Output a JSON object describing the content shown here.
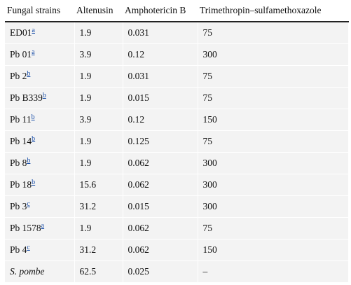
{
  "table": {
    "headers": [
      "Fungal strains",
      "Altenusin",
      "Amphotericin B",
      "Trimethropin–sulfamethoxazole"
    ],
    "rows": [
      {
        "strain": "ED01",
        "note": "a",
        "italic": false,
        "altenusin": "1.9",
        "amphotericin": "0.031",
        "tmp_smx": "75"
      },
      {
        "strain": "Pb 01",
        "note": "a",
        "italic": false,
        "altenusin": "3.9",
        "amphotericin": "0.12",
        "tmp_smx": "300"
      },
      {
        "strain": "Pb 2",
        "note": "b",
        "italic": false,
        "altenusin": "1.9",
        "amphotericin": "0.031",
        "tmp_smx": "75"
      },
      {
        "strain": "Pb B339",
        "note": "b",
        "italic": false,
        "altenusin": "1.9",
        "amphotericin": "0.015",
        "tmp_smx": "75"
      },
      {
        "strain": "Pb 11",
        "note": "b",
        "italic": false,
        "altenusin": "3.9",
        "amphotericin": "0.12",
        "tmp_smx": "150"
      },
      {
        "strain": "Pb 14",
        "note": "b",
        "italic": false,
        "altenusin": "1.9",
        "amphotericin": "0.125",
        "tmp_smx": "75"
      },
      {
        "strain": "Pb 8",
        "note": "b",
        "italic": false,
        "altenusin": "1.9",
        "amphotericin": "0.062",
        "tmp_smx": "300"
      },
      {
        "strain": "Pb 18",
        "note": "b",
        "italic": false,
        "altenusin": "15.6",
        "amphotericin": "0.062",
        "tmp_smx": "300"
      },
      {
        "strain": "Pb 3",
        "note": "c",
        "italic": false,
        "altenusin": "31.2",
        "amphotericin": "0.015",
        "tmp_smx": "300"
      },
      {
        "strain": "Pb 1578",
        "note": "a",
        "italic": false,
        "altenusin": "1.9",
        "amphotericin": "0.062",
        "tmp_smx": "75"
      },
      {
        "strain": "Pb 4",
        "note": "c",
        "italic": false,
        "altenusin": "31.2",
        "amphotericin": "0.062",
        "tmp_smx": "150"
      },
      {
        "strain": "S. pombe",
        "note": "",
        "italic": true,
        "altenusin": "62.5",
        "amphotericin": "0.025",
        "tmp_smx": "–"
      }
    ]
  },
  "colors": {
    "cell_background": "#f3f3f3",
    "footnote_link": "#1a4fa8",
    "header_rule": "#222222"
  }
}
